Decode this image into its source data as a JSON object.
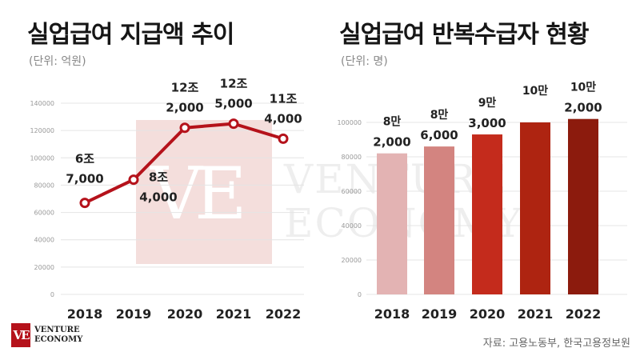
{
  "left": {
    "title": "실업급여 지급액 추이",
    "unit": "(단위: 억원)"
  },
  "right": {
    "title": "실업급여 반복수급자 현황",
    "unit": "(단위: 명)"
  },
  "watermark": {
    "monogram": "VE",
    "line1": "VENTURE",
    "line2": "ECONOMY"
  },
  "brand": {
    "monogram": "VE",
    "line1": "VENTURE",
    "line2": "ECONOMY"
  },
  "source": "자료: 고용노동부, 한국고용정보원",
  "colors": {
    "line": "#b5121b",
    "bars": [
      "#e3b3b3",
      "#d38480",
      "#c42b1c",
      "#ae2411",
      "#8c1b0d"
    ]
  },
  "chart_data": [
    {
      "type": "line",
      "title": "실업급여 지급액 추이",
      "unit": "(단위: 억원)",
      "categories": [
        "2018",
        "2019",
        "2020",
        "2021",
        "2022"
      ],
      "values": [
        67000,
        84000,
        122000,
        125000,
        114000
      ],
      "labels": [
        [
          "6조",
          "7,000"
        ],
        [
          "8조",
          "4,000"
        ],
        [
          "12조",
          "2,000"
        ],
        [
          "12조",
          "5,000"
        ],
        [
          "11조",
          "4,000"
        ]
      ],
      "yticks": [
        "0",
        "20000",
        "40000",
        "60000",
        "80000",
        "100000",
        "120000",
        "140000"
      ],
      "ylim": [
        0,
        140000
      ],
      "grid": true
    },
    {
      "type": "bar",
      "title": "실업급여 반복수급자 현황",
      "unit": "(단위: 명)",
      "categories": [
        "2018",
        "2019",
        "2020",
        "2021",
        "2022"
      ],
      "values": [
        82000,
        86000,
        93000,
        100000,
        102000
      ],
      "labels": [
        [
          "8만",
          "2,000"
        ],
        [
          "8만",
          "6,000"
        ],
        [
          "9만",
          "3,000"
        ],
        [
          "10만",
          ""
        ],
        [
          "10만",
          "2,000"
        ]
      ],
      "yticks": [
        "0",
        "20000",
        "40000",
        "60000",
        "80000",
        "100000"
      ],
      "ylim": [
        0,
        120000
      ],
      "grid": true
    }
  ]
}
